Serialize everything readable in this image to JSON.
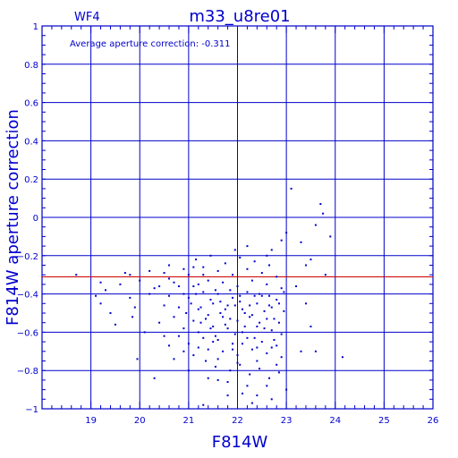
{
  "panel_label": "WF4",
  "title": "m33_u8re01",
  "annotation": "Average aperture correction: -0.311",
  "chart_data": {
    "type": "scatter",
    "title": "m33_u8re01",
    "xlabel": "F814W",
    "ylabel": "F814W aperture correction",
    "xlim": [
      18,
      26
    ],
    "ylim": [
      -1,
      1
    ],
    "grid": true,
    "x_ticks": [
      19,
      20,
      21,
      22,
      23,
      24,
      25,
      26
    ],
    "y_ticks": [
      -1,
      -0.8,
      -0.6,
      -0.4,
      -0.2,
      0,
      0.2,
      0.4,
      0.6,
      0.8,
      1
    ],
    "reference_line": {
      "y": -0.311,
      "label": "Average aperture correction: -0.311"
    },
    "colors": {
      "axes": "#0000cc",
      "points": "#0000cc",
      "reference": "#cc0000"
    },
    "points": [
      [
        18.7,
        -0.3
      ],
      [
        19.2,
        -0.34
      ],
      [
        19.3,
        -0.38
      ],
      [
        19.2,
        -0.45
      ],
      [
        19.4,
        -0.5
      ],
      [
        19.5,
        -0.56
      ],
      [
        19.1,
        -0.41
      ],
      [
        19.7,
        -0.29
      ],
      [
        19.6,
        -0.35
      ],
      [
        19.8,
        -0.42
      ],
      [
        19.9,
        -0.47
      ],
      [
        19.95,
        -0.74
      ],
      [
        20.0,
        -0.33
      ],
      [
        20.1,
        -0.6
      ],
      [
        20.2,
        -0.4
      ],
      [
        20.2,
        -0.28
      ],
      [
        19.8,
        -0.3
      ],
      [
        19.85,
        -0.52
      ],
      [
        20.3,
        -0.37
      ],
      [
        20.4,
        -0.55
      ],
      [
        20.5,
        -0.29
      ],
      [
        20.6,
        -0.32
      ],
      [
        20.5,
        -0.46
      ],
      [
        20.3,
        -0.84
      ],
      [
        23.1,
        0.15
      ],
      [
        23.7,
        0.07
      ],
      [
        23.75,
        0.02
      ],
      [
        23.6,
        -0.04
      ],
      [
        23.9,
        -0.1
      ],
      [
        23.3,
        -0.13
      ],
      [
        23.5,
        -0.22
      ],
      [
        23.4,
        -0.25
      ],
      [
        23.8,
        -0.3
      ],
      [
        23.2,
        -0.36
      ],
      [
        23.4,
        -0.45
      ],
      [
        23.5,
        -0.57
      ],
      [
        23.3,
        -0.7
      ],
      [
        23.6,
        -0.7
      ],
      [
        24.15,
        -0.73
      ],
      [
        23.0,
        -0.08
      ],
      [
        22.9,
        -0.12
      ],
      [
        22.7,
        -0.17
      ],
      [
        22.6,
        -0.2
      ],
      [
        23.0,
        -0.9
      ],
      [
        22.7,
        -0.95
      ],
      [
        22.4,
        -0.93
      ],
      [
        21.6,
        -0.85
      ],
      [
        21.3,
        -0.98
      ],
      [
        20.4,
        -0.36
      ],
      [
        20.6,
        -0.41
      ],
      [
        20.7,
        -0.34
      ],
      [
        20.8,
        -0.47
      ],
      [
        20.7,
        -0.52
      ],
      [
        20.9,
        -0.58
      ],
      [
        20.8,
        -0.62
      ],
      [
        20.6,
        -0.67
      ],
      [
        21.0,
        -0.3
      ],
      [
        21.1,
        -0.36
      ],
      [
        21.0,
        -0.42
      ],
      [
        21.2,
        -0.48
      ],
      [
        21.1,
        -0.54
      ],
      [
        21.2,
        -0.6
      ],
      [
        21.0,
        -0.66
      ],
      [
        21.1,
        -0.72
      ],
      [
        21.3,
        -0.26
      ],
      [
        21.4,
        -0.33
      ],
      [
        21.3,
        -0.39
      ],
      [
        21.5,
        -0.45
      ],
      [
        21.4,
        -0.51
      ],
      [
        21.5,
        -0.57
      ],
      [
        21.3,
        -0.63
      ],
      [
        21.4,
        -0.69
      ],
      [
        21.6,
        -0.28
      ],
      [
        21.7,
        -0.34
      ],
      [
        21.6,
        -0.4
      ],
      [
        21.8,
        -0.46
      ],
      [
        21.7,
        -0.52
      ],
      [
        21.8,
        -0.58
      ],
      [
        21.6,
        -0.64
      ],
      [
        21.7,
        -0.7
      ],
      [
        21.9,
        -0.3
      ],
      [
        22.0,
        -0.36
      ],
      [
        21.9,
        -0.42
      ],
      [
        22.1,
        -0.48
      ],
      [
        22.0,
        -0.54
      ],
      [
        22.1,
        -0.6
      ],
      [
        21.9,
        -0.66
      ],
      [
        22.0,
        -0.72
      ],
      [
        22.2,
        -0.27
      ],
      [
        22.3,
        -0.33
      ],
      [
        22.2,
        -0.39
      ],
      [
        22.4,
        -0.45
      ],
      [
        22.3,
        -0.51
      ],
      [
        22.4,
        -0.57
      ],
      [
        22.2,
        -0.63
      ],
      [
        22.3,
        -0.69
      ],
      [
        22.5,
        -0.29
      ],
      [
        22.6,
        -0.35
      ],
      [
        22.5,
        -0.41
      ],
      [
        22.7,
        -0.47
      ],
      [
        22.6,
        -0.53
      ],
      [
        22.7,
        -0.59
      ],
      [
        22.5,
        -0.65
      ],
      [
        22.6,
        -0.71
      ],
      [
        22.8,
        -0.31
      ],
      [
        22.9,
        -0.37
      ],
      [
        22.8,
        -0.43
      ],
      [
        22.95,
        -0.49
      ],
      [
        22.85,
        -0.55
      ],
      [
        22.9,
        -0.61
      ],
      [
        22.8,
        -0.67
      ],
      [
        22.9,
        -0.73
      ],
      [
        21.2,
        -0.35
      ],
      [
        21.45,
        -0.43
      ],
      [
        21.65,
        -0.5
      ],
      [
        21.85,
        -0.38
      ],
      [
        22.05,
        -0.44
      ],
      [
        22.25,
        -0.52
      ],
      [
        22.45,
        -0.4
      ],
      [
        22.65,
        -0.46
      ],
      [
        21.25,
        -0.55
      ],
      [
        21.55,
        -0.62
      ],
      [
        21.75,
        -0.56
      ],
      [
        21.95,
        -0.61
      ],
      [
        22.15,
        -0.57
      ],
      [
        22.35,
        -0.63
      ],
      [
        22.55,
        -0.58
      ],
      [
        22.75,
        -0.64
      ],
      [
        21.35,
        -0.75
      ],
      [
        21.55,
        -0.78
      ],
      [
        21.85,
        -0.8
      ],
      [
        22.05,
        -0.77
      ],
      [
        22.25,
        -0.82
      ],
      [
        22.45,
        -0.79
      ],
      [
        22.65,
        -0.84
      ],
      [
        22.85,
        -0.81
      ],
      [
        21.15,
        -0.22
      ],
      [
        21.45,
        -0.2
      ],
      [
        21.75,
        -0.24
      ],
      [
        22.05,
        -0.21
      ],
      [
        22.35,
        -0.23
      ],
      [
        22.65,
        -0.25
      ],
      [
        21.95,
        -0.17
      ],
      [
        22.2,
        -0.15
      ],
      [
        20.9,
        -0.4
      ],
      [
        20.95,
        -0.5
      ],
      [
        21.05,
        -0.45
      ],
      [
        21.15,
        -0.4
      ],
      [
        21.25,
        -0.47
      ],
      [
        21.35,
        -0.53
      ],
      [
        21.45,
        -0.58
      ],
      [
        21.55,
        -0.38
      ],
      [
        21.65,
        -0.44
      ],
      [
        21.75,
        -0.48
      ],
      [
        21.85,
        -0.53
      ],
      [
        21.95,
        -0.46
      ],
      [
        22.05,
        -0.41
      ],
      [
        22.15,
        -0.5
      ],
      [
        22.25,
        -0.46
      ],
      [
        22.35,
        -0.41
      ],
      [
        22.45,
        -0.55
      ],
      [
        22.55,
        -0.49
      ],
      [
        22.65,
        -0.41
      ],
      [
        22.75,
        -0.53
      ],
      [
        22.85,
        -0.45
      ],
      [
        22.95,
        -0.39
      ],
      [
        21.5,
        -0.65
      ],
      [
        21.9,
        -0.69
      ],
      [
        22.1,
        -0.66
      ],
      [
        22.4,
        -0.68
      ],
      [
        22.7,
        -0.68
      ],
      [
        21.2,
        -0.68
      ],
      [
        21.6,
        -0.74
      ],
      [
        22.0,
        -0.76
      ],
      [
        22.4,
        -0.75
      ],
      [
        22.8,
        -0.77
      ],
      [
        21.0,
        -0.8
      ],
      [
        21.4,
        -0.84
      ],
      [
        21.8,
        -0.86
      ],
      [
        22.2,
        -0.88
      ],
      [
        22.6,
        -0.88
      ],
      [
        22.1,
        -0.92
      ],
      [
        21.8,
        -0.93
      ],
      [
        22.3,
        -0.97
      ],
      [
        20.5,
        -0.62
      ],
      [
        20.7,
        -0.74
      ],
      [
        20.9,
        -0.7
      ],
      [
        20.8,
        -0.36
      ],
      [
        20.6,
        -0.25
      ],
      [
        20.9,
        -0.27
      ],
      [
        21.1,
        -0.26
      ],
      [
        21.3,
        -0.3
      ]
    ]
  }
}
